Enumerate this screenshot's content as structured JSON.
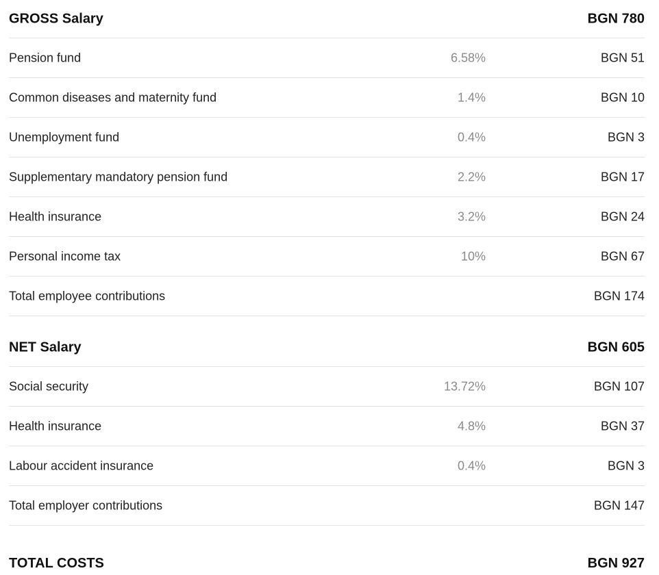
{
  "gross": {
    "label": "GROSS Salary",
    "amount": "BGN 780"
  },
  "employee_rows": [
    {
      "label": "Pension fund",
      "rate": "6.58%",
      "amount": "BGN 51"
    },
    {
      "label": "Common diseases and maternity fund",
      "rate": "1.4%",
      "amount": "BGN 10"
    },
    {
      "label": "Unemployment fund",
      "rate": "0.4%",
      "amount": "BGN 3"
    },
    {
      "label": "Supplementary mandatory pension fund",
      "rate": "2.2%",
      "amount": "BGN 17"
    },
    {
      "label": "Health insurance",
      "rate": "3.2%",
      "amount": "BGN 24"
    },
    {
      "label": "Personal income tax",
      "rate": "10%",
      "amount": "BGN 67"
    }
  ],
  "employee_total": {
    "label": "Total employee contributions",
    "amount": "BGN 174"
  },
  "net": {
    "label": "NET Salary",
    "amount": "BGN 605"
  },
  "employer_rows": [
    {
      "label": "Social security",
      "rate": "13.72%",
      "amount": "BGN 107"
    },
    {
      "label": "Health insurance",
      "rate": "4.8%",
      "amount": "BGN 37"
    },
    {
      "label": "Labour accident insurance",
      "rate": "0.4%",
      "amount": "BGN 3"
    }
  ],
  "employer_total": {
    "label": "Total employer contributions",
    "amount": "BGN 147"
  },
  "total_costs": {
    "label": "TOTAL COSTS",
    "amount": "BGN 927"
  }
}
